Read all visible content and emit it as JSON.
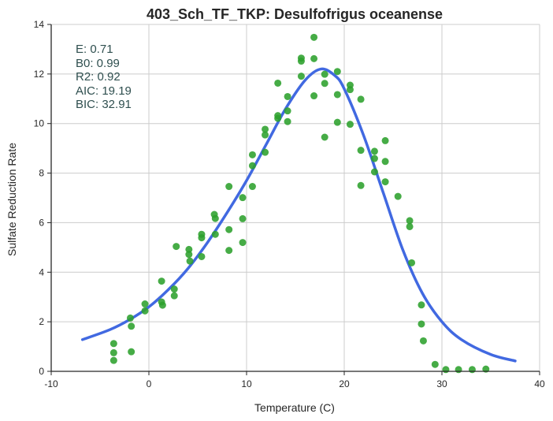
{
  "chart_data": {
    "type": "scatter",
    "title": "403_Sch_TF_TKP: Desulfofrigus oceanense",
    "xlabel": "Temperature (C)",
    "ylabel": "Sulfate Reduction Rate",
    "xlim": [
      -10,
      40
    ],
    "ylim": [
      0,
      14
    ],
    "xticks": [
      -10,
      0,
      10,
      20,
      30,
      40
    ],
    "yticks": [
      0,
      2,
      4,
      6,
      8,
      10,
      12,
      14
    ],
    "grid": true,
    "stats": [
      "E:  0.71",
      "B0:  0.99",
      "R2:  0.92",
      "AIC: 19.19",
      "BIC: 32.91"
    ],
    "colors": {
      "points": "#2ca02c",
      "fit_line": "#4169e1",
      "grid": "#cccccc",
      "stats_text": "#2f4f4f"
    },
    "series": [
      {
        "kind": "points",
        "x": [
          -3.6,
          -3.6,
          -3.6,
          -1.9,
          -1.8,
          -1.8,
          -0.4,
          -0.4,
          1.3,
          1.3,
          1.4,
          2.6,
          2.6,
          2.8,
          4.1,
          4.1,
          4.2,
          5.4,
          5.4,
          5.4,
          6.7,
          6.8,
          6.8,
          8.2,
          8.2,
          8.2,
          9.6,
          9.6,
          9.6,
          10.6,
          10.6,
          10.6,
          11.9,
          11.9,
          11.9,
          13.2,
          13.2,
          13.2,
          14.2,
          14.2,
          14.2,
          15.6,
          15.6,
          15.6,
          16.9,
          16.9,
          16.9,
          18.0,
          18.0,
          18.0,
          19.3,
          19.3,
          19.3,
          20.6,
          20.6,
          20.6,
          21.7,
          21.7,
          21.7,
          23.1,
          23.1,
          23.1,
          24.2,
          24.2,
          24.2,
          25.5,
          26.7,
          26.7,
          26.9,
          27.9,
          27.9,
          28.1,
          29.3,
          30.4,
          31.7,
          33.1,
          34.5
        ],
        "y": [
          1.12,
          0.75,
          0.44,
          2.15,
          1.82,
          0.79,
          2.72,
          2.44,
          3.64,
          2.8,
          2.67,
          3.32,
          3.05,
          5.04,
          4.92,
          4.72,
          4.45,
          5.53,
          5.39,
          4.63,
          6.33,
          6.17,
          5.53,
          7.46,
          5.72,
          4.88,
          7.01,
          6.16,
          5.2,
          8.74,
          8.3,
          7.46,
          9.77,
          9.54,
          8.84,
          10.32,
          10.21,
          11.63,
          11.09,
          10.51,
          10.08,
          12.64,
          12.52,
          11.91,
          13.48,
          12.62,
          11.12,
          11.99,
          11.62,
          9.45,
          12.1,
          11.17,
          10.05,
          11.55,
          11.37,
          9.97,
          10.98,
          8.92,
          7.5,
          8.88,
          8.59,
          8.05,
          9.31,
          8.47,
          7.65,
          7.06,
          6.08,
          5.84,
          4.38,
          2.68,
          1.91,
          1.23,
          0.28,
          0.07,
          0.07,
          0.07,
          0.09
        ]
      },
      {
        "kind": "fit",
        "x": [
          -6.8,
          -4,
          -2,
          0,
          2,
          4,
          6,
          8,
          10,
          12,
          14,
          16,
          17.6,
          19,
          20,
          22,
          24,
          26,
          28,
          30,
          32,
          35,
          37.5
        ],
        "y": [
          1.28,
          1.68,
          2.08,
          2.6,
          3.3,
          4.15,
          5.2,
          6.4,
          7.7,
          9.15,
          10.6,
          11.75,
          12.2,
          11.95,
          11.4,
          9.5,
          7.2,
          4.9,
          3.15,
          2.0,
          1.28,
          0.68,
          0.42
        ]
      }
    ]
  }
}
